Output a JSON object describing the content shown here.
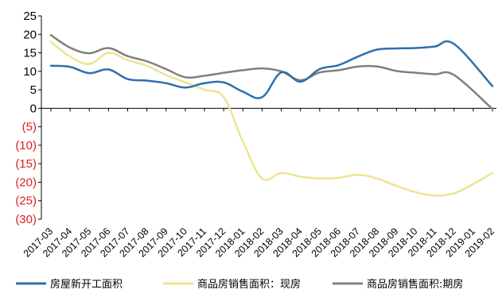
{
  "chart_data": {
    "type": "line",
    "x": [
      "2017-03",
      "2017-04",
      "2017-05",
      "2017-06",
      "2017-07",
      "2017-08",
      "2017-09",
      "2017-10",
      "2017-11",
      "2017-12",
      "2018-01",
      "2018-02",
      "2018-03",
      "2018-04",
      "2018-05",
      "2018-06",
      "2018-07",
      "2018-08",
      "2018-09",
      "2018-10",
      "2018-11",
      "2018-12",
      "2019-01",
      "2019-02"
    ],
    "ylim": [
      -30,
      25
    ],
    "y_ticks": [
      25,
      20,
      15,
      10,
      5,
      0,
      -5,
      -10,
      -15,
      -20,
      -25,
      -30
    ],
    "y_tick_labels": [
      "25",
      "20",
      "15",
      "10",
      "5",
      "0",
      "(5)",
      "(10)",
      "(15)",
      "(20)",
      "(25)",
      "(30)"
    ],
    "negative_tick_color": "#e01e1e",
    "positive_tick_color": "#000000",
    "grid": false,
    "legend_position": "bottom",
    "series": [
      {
        "name": "房屋新开工面积",
        "color": "#2e6fad",
        "values": [
          11.5,
          11.2,
          9.5,
          10.5,
          7.9,
          7.5,
          6.8,
          5.6,
          6.8,
          7.0,
          4.5,
          3.0,
          9.7,
          7.2,
          10.6,
          11.7,
          14.0,
          15.9,
          16.2,
          16.3,
          16.7,
          17.4,
          null,
          6.0
        ]
      },
      {
        "name": "商品房销售面积：现房",
        "color": "#ede58e",
        "values": [
          18.0,
          14.0,
          12.0,
          15.0,
          13.0,
          11.5,
          9.0,
          7.0,
          5.0,
          3.0,
          -9.0,
          -19.0,
          -17.5,
          -18.5,
          -19.0,
          -18.8,
          -18.0,
          -19.0,
          -21.0,
          -22.7,
          -23.6,
          -23.0,
          -20.5,
          -17.5
        ]
      },
      {
        "name": "商品房销售面积：期房",
        "color": "#7f7f7f",
        "values": [
          19.8,
          16.4,
          14.9,
          16.3,
          14.1,
          12.7,
          10.6,
          8.4,
          8.8,
          9.6,
          10.3,
          10.8,
          10.0,
          7.6,
          9.7,
          10.3,
          11.3,
          11.3,
          10.1,
          9.6,
          9.2,
          9.0,
          null,
          -0.2
        ]
      }
    ]
  },
  "legend": {
    "items": [
      {
        "label": "房屋新开工面积",
        "color": "#2e6fad"
      },
      {
        "label": "商品房销售面积：现房",
        "color": "#ede58e"
      },
      {
        "label": "商品房销售面积:期房",
        "color": "#7f7f7f"
      }
    ]
  }
}
